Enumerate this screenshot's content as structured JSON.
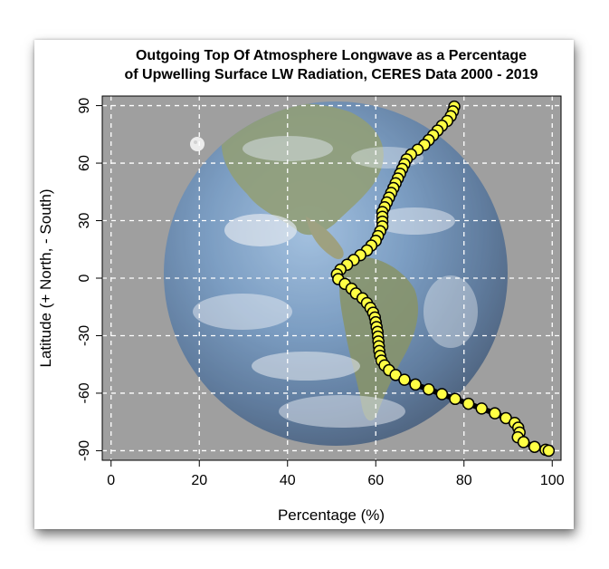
{
  "chart_data": {
    "type": "line",
    "title_line1": "Outgoing Top Of Atmosphere Longwave as a Percentage",
    "title_line2": "of Upwelling Surface LW Radiation, CERES Data 2000 - 2019",
    "xlabel": "Percentage (%)",
    "ylabel": "Latitude (+ North, - South)",
    "xlim": [
      -2,
      102
    ],
    "ylim": [
      -95,
      95
    ],
    "xticks": [
      "0",
      "20",
      "40",
      "60",
      "80",
      "100"
    ],
    "yticks": [
      "90",
      "60",
      "30",
      "0",
      "-30",
      "-60",
      "-90"
    ],
    "grid": true,
    "background": "earth-globe-image",
    "line_color": "#000000",
    "marker_color": "#ffff44",
    "series": [
      {
        "x": [
          77.8,
          77.5,
          77.0,
          76.2,
          75.0,
          74.0,
          73.0,
          72.0,
          71.0,
          69.5,
          68.0,
          67.0,
          66.5,
          66.0,
          65.5,
          65.0,
          64.5,
          64.0,
          63.5,
          63.0,
          62.5,
          62.0,
          61.5,
          61.5,
          61.5,
          61.5,
          61.0,
          60.5,
          60.0,
          59.0,
          58.0,
          56.5,
          55.0,
          53.5,
          52.0,
          51.2,
          51.5,
          53.0,
          54.5,
          55.5,
          57.0,
          58.0,
          58.8,
          59.4,
          59.8,
          60.0,
          60.2,
          60.4,
          60.5,
          60.6,
          60.7,
          60.8,
          61.0,
          61.3,
          62.0,
          63.0,
          64.5,
          66.5,
          69.0,
          72.0,
          75.0,
          78.0,
          81.0,
          84.0,
          87.0,
          89.5,
          91.5,
          92.3,
          92.6,
          92.2,
          93.5,
          96.0,
          98.5,
          99.2
        ],
        "y": [
          89.5,
          87,
          84.5,
          82,
          79.5,
          77,
          74.5,
          72,
          69.5,
          67,
          64.5,
          62,
          59.5,
          57,
          54.5,
          52,
          49.5,
          47,
          44.5,
          42,
          39.5,
          37,
          34.5,
          32,
          29.5,
          27,
          24.5,
          22,
          19.5,
          17,
          14.5,
          12,
          9.5,
          7,
          4.5,
          2,
          -0.5,
          -3,
          -5.5,
          -8,
          -10.5,
          -13,
          -15.5,
          -18,
          -20.5,
          -23,
          -25.5,
          -28,
          -30.5,
          -33,
          -35.5,
          -38,
          -40.5,
          -43,
          -45.5,
          -48,
          -50.5,
          -53,
          -55.5,
          -58,
          -60.5,
          -63,
          -65.5,
          -68,
          -70.5,
          -73,
          -75.5,
          -78,
          -80.5,
          -83,
          -85.5,
          -88,
          -89.5,
          -90
        ]
      }
    ]
  }
}
